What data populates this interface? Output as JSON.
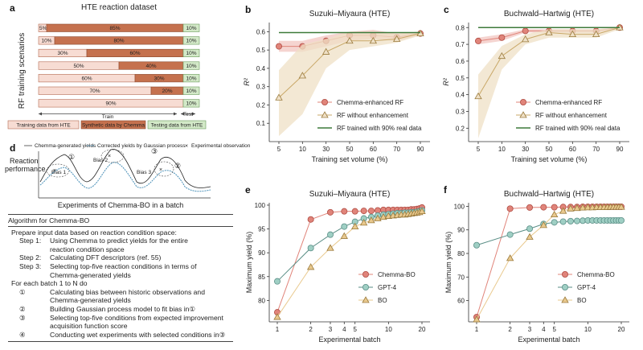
{
  "panel_a": {
    "letter": "a",
    "title": "HTE reaction dataset",
    "ylabel": "RF training scenarios",
    "train_label": "Train",
    "test_label": "Test",
    "legend": [
      "Training data from HTE",
      "Synthetic data by Chemma",
      "Testing data from HTE"
    ],
    "colors": {
      "train": "#f7dcd3",
      "synth": "#c5714e",
      "test": "#d3e9c8"
    },
    "rows": [
      {
        "train": 5,
        "synth": 85,
        "test": 10,
        "labels": [
          "5%",
          "85%",
          "10%"
        ]
      },
      {
        "train": 10,
        "synth": 80,
        "test": 10,
        "labels": [
          "10%",
          "80%",
          "10%"
        ]
      },
      {
        "train": 30,
        "synth": 60,
        "test": 10,
        "labels": [
          "30%",
          "60%",
          "10%"
        ]
      },
      {
        "train": 50,
        "synth": 40,
        "test": 10,
        "labels": [
          "50%",
          "40%",
          "10%"
        ]
      },
      {
        "train": 60,
        "synth": 30,
        "test": 10,
        "labels": [
          "60%",
          "30%",
          "10%"
        ]
      },
      {
        "train": 70,
        "synth": 20,
        "test": 10,
        "labels": [
          "70%",
          "20%",
          "10%"
        ]
      },
      {
        "train": 90,
        "synth": 0,
        "test": 10,
        "labels": [
          "90%",
          "",
          "10%"
        ]
      }
    ]
  },
  "panel_d": {
    "letter": "d",
    "legend": [
      "Chemma-generated yields",
      "Corrected yields by Gaussian process",
      "Experimental observation"
    ],
    "ylabel_1": "Reaction",
    "ylabel_2": "performance",
    "xlabel": "Experiments of Chemma-BO in a batch",
    "bias_labels": [
      "Bias 1",
      "Bias 2",
      "Bias 3"
    ],
    "markers": [
      "①",
      "③",
      "②"
    ]
  },
  "algorithm": {
    "title": "Algorithm for Chemma-BO",
    "lines": [
      {
        "type": "i1",
        "text": "Prepare input data based on reaction condition space:"
      },
      {
        "type": "step",
        "label": "Step 1:",
        "text": "Using Chemma to predict yields for the entire"
      },
      {
        "type": "cont",
        "text": "reaction condition space"
      },
      {
        "type": "step",
        "label": "Step 2:",
        "text": "Calculating DFT descriptors (ref. 55)"
      },
      {
        "type": "step",
        "label": "Step 3:",
        "text": "Selecting top-five reaction conditions in terms of"
      },
      {
        "type": "cont",
        "text": "Chemma-generated yields"
      },
      {
        "type": "i1",
        "text": "For each batch 1 to N do"
      },
      {
        "type": "step",
        "label": "①",
        "text": "Calculating bias between historic observations and"
      },
      {
        "type": "cont",
        "text": "Chemma-generated yields"
      },
      {
        "type": "step",
        "label": "②",
        "text": "Building Gaussian process model to fit bias in①"
      },
      {
        "type": "step",
        "label": "③",
        "text": "Selecting top-five conditions from expected improvement"
      },
      {
        "type": "cont",
        "text": "acquisition function score"
      },
      {
        "type": "step",
        "label": "④",
        "text": "Conducting wet experiments with selected conditions in③"
      }
    ]
  },
  "chart_data": [
    {
      "panel": "b",
      "type": "line",
      "title": "Suzuki–Miyaura (HTE)",
      "xlabel": "Training set volume (%)",
      "ylabel": "R²",
      "x": [
        5,
        10,
        30,
        50,
        60,
        70,
        90
      ],
      "xticks": [
        "5",
        "10",
        "30",
        "50",
        "60",
        "70",
        "90"
      ],
      "ylim": [
        0,
        0.65
      ],
      "yticks": [
        0.1,
        0.2,
        0.3,
        0.4,
        0.5,
        0.6
      ],
      "ytick_labels": [
        "0.1",
        "0.2",
        "0.3",
        "0.4",
        "0.5",
        "0.6"
      ],
      "series": [
        {
          "name": "Chemma-enhanced RF",
          "values": [
            0.52,
            0.52,
            0.55,
            0.58,
            0.58,
            0.57,
            0.59
          ],
          "lower": [
            0.49,
            0.49,
            0.52,
            0.55,
            0.56,
            0.55,
            0.58
          ],
          "upper": [
            0.55,
            0.55,
            0.58,
            0.6,
            0.61,
            0.59,
            0.6
          ]
        },
        {
          "name": "RF without enhancement",
          "values": [
            0.24,
            0.36,
            0.49,
            0.55,
            0.55,
            0.56,
            0.59
          ],
          "lower": [
            0.03,
            0.15,
            0.4,
            0.5,
            0.52,
            0.54,
            0.58
          ],
          "upper": [
            0.39,
            0.53,
            0.56,
            0.6,
            0.6,
            0.59,
            0.6
          ]
        },
        {
          "name": "RF trained with 90% real data",
          "values": [
            0.595,
            0.595,
            0.595,
            0.595,
            0.595,
            0.595,
            0.595
          ]
        }
      ],
      "legend_position": "lower-right"
    },
    {
      "panel": "c",
      "type": "line",
      "title": "Buchwald–Hartwig (HTE)",
      "xlabel": "Training set volume (%)",
      "ylabel": "R²",
      "x": [
        5,
        10,
        30,
        50,
        60,
        70,
        90
      ],
      "xticks": [
        "5",
        "10",
        "30",
        "50",
        "60",
        "70",
        "90"
      ],
      "ylim": [
        0.12,
        0.83
      ],
      "yticks": [
        0.2,
        0.3,
        0.4,
        0.5,
        0.6,
        0.7,
        0.8
      ],
      "ytick_labels": [
        "0.2",
        "0.3",
        "0.4",
        "0.5",
        "0.6",
        "0.7",
        "0.8"
      ],
      "series": [
        {
          "name": "Chemma-enhanced RF",
          "values": [
            0.72,
            0.74,
            0.78,
            0.78,
            0.78,
            0.78,
            0.8
          ],
          "lower": [
            0.7,
            0.72,
            0.77,
            0.77,
            0.77,
            0.77,
            0.79
          ],
          "upper": [
            0.74,
            0.76,
            0.79,
            0.79,
            0.79,
            0.79,
            0.8
          ]
        },
        {
          "name": "RF without enhancement",
          "values": [
            0.39,
            0.63,
            0.73,
            0.77,
            0.76,
            0.76,
            0.8
          ],
          "lower": [
            0.14,
            0.55,
            0.7,
            0.74,
            0.74,
            0.74,
            0.79
          ],
          "upper": [
            0.52,
            0.69,
            0.76,
            0.79,
            0.79,
            0.79,
            0.8
          ]
        },
        {
          "name": "RF trained with 90% real data",
          "values": [
            0.8,
            0.8,
            0.8,
            0.8,
            0.8,
            0.8,
            0.8
          ]
        }
      ],
      "legend_position": "lower-right"
    },
    {
      "panel": "e",
      "type": "line",
      "title": "Suzuki–Miyaura (HTE)",
      "xlabel": "Experimental batch",
      "ylabel": "Maximum yield (%)",
      "x": [
        1,
        2,
        3,
        4,
        5,
        6,
        7,
        8,
        9,
        10,
        11,
        12,
        13,
        14,
        15,
        16,
        17,
        18,
        19,
        20
      ],
      "xticks": [
        1,
        2,
        3,
        4,
        5,
        10,
        20
      ],
      "xtick_labels": [
        "1",
        "2",
        "3",
        "4",
        "5",
        "10",
        "20"
      ],
      "xscale": "log",
      "ylim": [
        75.5,
        100.5
      ],
      "yticks": [
        80,
        85,
        90,
        95,
        100
      ],
      "ytick_labels": [
        "80",
        "85",
        "90",
        "95",
        "100"
      ],
      "series": [
        {
          "name": "Chemma-BO",
          "values": [
            77.5,
            97,
            98.5,
            98.7,
            98.7,
            98.8,
            98.8,
            98.9,
            99,
            99,
            99,
            99,
            99,
            99,
            99,
            99.1,
            99.1,
            99.2,
            99.3,
            99.5
          ]
        },
        {
          "name": "GPT-4",
          "values": [
            84,
            91,
            93.8,
            95.5,
            96.5,
            97.2,
            97.5,
            97.8,
            98,
            98.1,
            98.2,
            98.3,
            98.3,
            98.4,
            98.4,
            98.5,
            98.5,
            98.6,
            98.7,
            98.9
          ]
        },
        {
          "name": "BO",
          "values": [
            76.5,
            87,
            91,
            93.5,
            95.5,
            96.3,
            96.8,
            97.2,
            97.5,
            97.7,
            97.8,
            97.9,
            98,
            98,
            98.1,
            98.2,
            98.3,
            98.4,
            98.5,
            98.7
          ]
        }
      ],
      "legend_position": "lower-right"
    },
    {
      "panel": "f",
      "type": "line",
      "title": "Buchwald–Hartwig (HTE)",
      "xlabel": "Experimental batch",
      "ylabel": "Maximum yield (%)",
      "x": [
        1,
        2,
        3,
        4,
        5,
        6,
        7,
        8,
        9,
        10,
        11,
        12,
        13,
        14,
        15,
        16,
        17,
        18,
        19,
        20
      ],
      "xticks": [
        1,
        2,
        3,
        4,
        5,
        10,
        20
      ],
      "xtick_labels": [
        "1",
        "2",
        "3",
        "4",
        "5",
        "10",
        "20"
      ],
      "xscale": "log",
      "ylim": [
        51,
        101.5
      ],
      "yticks": [
        60,
        70,
        80,
        90,
        100
      ],
      "ytick_labels": [
        "60",
        "70",
        "80",
        "90",
        "100"
      ],
      "series": [
        {
          "name": "Chemma-BO",
          "values": [
            53,
            99,
            99.5,
            99.6,
            99.6,
            99.7,
            99.7,
            99.7,
            99.8,
            99.8,
            99.8,
            99.8,
            99.8,
            99.8,
            99.8,
            99.8,
            99.8,
            99.8,
            99.8,
            99.8
          ]
        },
        {
          "name": "GPT-4",
          "values": [
            83.5,
            88,
            90.5,
            92.5,
            93.2,
            93.5,
            93.7,
            93.8,
            93.9,
            94,
            94,
            94,
            94,
            94,
            94,
            94,
            94,
            94,
            94,
            94
          ]
        },
        {
          "name": "BO",
          "values": [
            52,
            78,
            87,
            92,
            96.5,
            98,
            99,
            99.2,
            99.4,
            99.5,
            99.5,
            99.6,
            99.6,
            99.6,
            99.6,
            99.7,
            99.7,
            99.7,
            99.7,
            99.7
          ]
        }
      ],
      "legend_position": "lower-right"
    }
  ],
  "colors": {
    "chemma": "#e0847a",
    "chemma_fill": "#f2c6c0",
    "rf": "#c9a868",
    "rf_fill": "#efe0c6",
    "real": "#3d7a3a",
    "gpt": "#9fcfc4",
    "gpt_edge": "#5a8e86",
    "bo": "#e9c98e",
    "bo_edge": "#9a7a3c"
  }
}
